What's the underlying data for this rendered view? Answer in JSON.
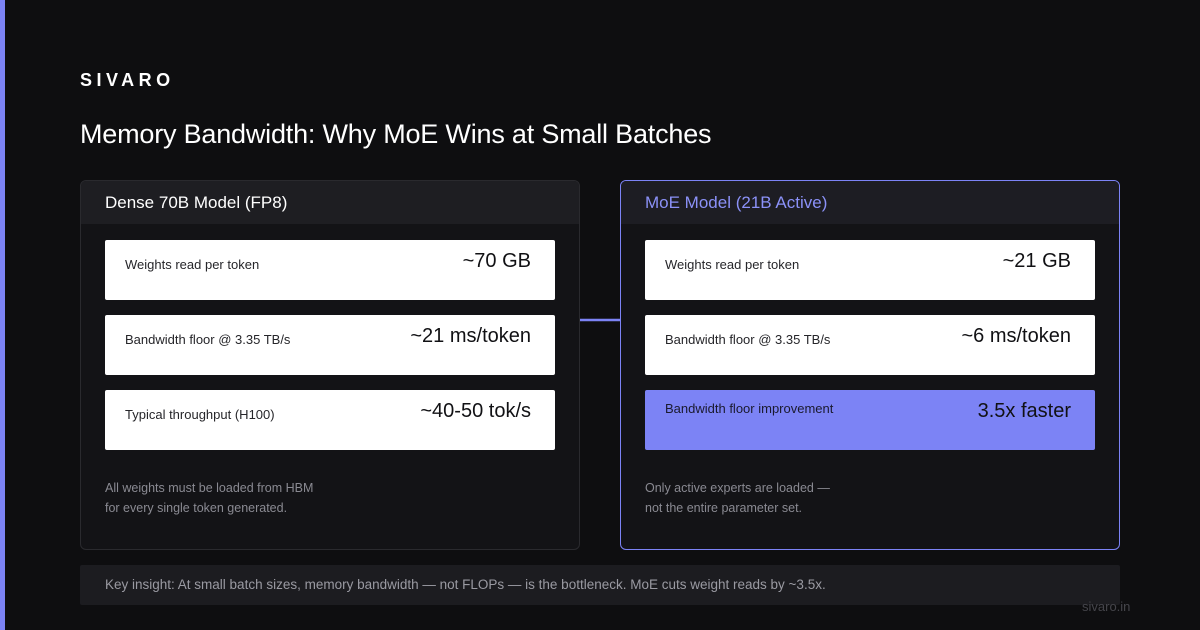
{
  "brand": "SIVARO",
  "title": "Memory Bandwidth: Why MoE Wins at Small Batches",
  "colors": {
    "background": "#0e0e10",
    "accent": "#7c83f5",
    "panel": "#131316",
    "card": "#ffffff"
  },
  "dense": {
    "header": "Dense 70B Model (FP8)",
    "stats": [
      {
        "label": "Weights read per token",
        "value": "~70 GB"
      },
      {
        "label": "Bandwidth floor @ 3.35 TB/s",
        "value": "~21 ms/token"
      },
      {
        "label": "Typical throughput (H100)",
        "value": "~40-50 tok/s"
      }
    ],
    "note": [
      "All weights must be loaded from HBM",
      "for every single token generated."
    ]
  },
  "moe": {
    "header": "MoE Model (21B Active)",
    "stats": [
      {
        "label": "Weights read per token",
        "value": "~21 GB"
      },
      {
        "label": "Bandwidth floor @ 3.35 TB/s",
        "value": "~6 ms/token"
      },
      {
        "label": "Bandwidth floor improvement",
        "value": "3.5x faster"
      }
    ],
    "note": [
      "Only active experts are loaded —",
      "not the entire parameter set."
    ]
  },
  "arrow_icon": "right-arrow-icon",
  "insight": "Key insight: At small batch sizes, memory bandwidth — not FLOPs — is the bottleneck. MoE cuts weight reads by ~3.5x.",
  "footer_url": "sivaro.in"
}
